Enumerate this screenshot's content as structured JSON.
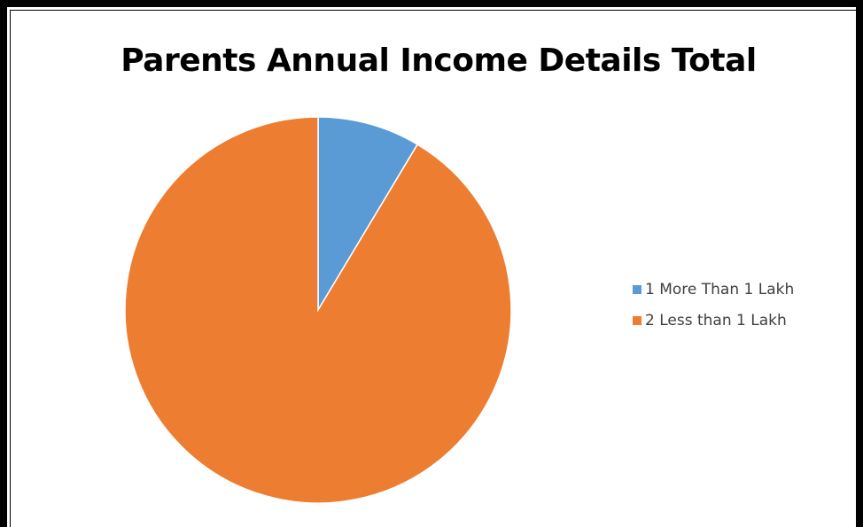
{
  "chart_data": {
    "type": "pie",
    "title": "Parents Annual Income Details Total",
    "categories": [
      "1 More Than 1 Lakh",
      "2 Less than 1 Lakh"
    ],
    "values": [
      8.6,
      91.4
    ],
    "colors": [
      "#5B9BD5",
      "#ED7D31"
    ],
    "legend_position": "right",
    "start_angle": "12 o'clock, clockwise"
  }
}
